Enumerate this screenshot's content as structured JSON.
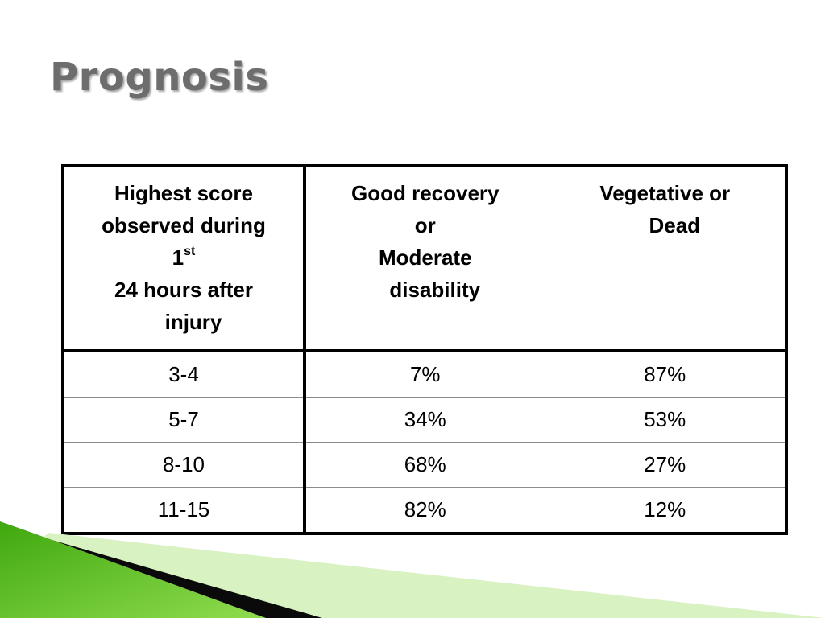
{
  "slide": {
    "title": "Prognosis"
  },
  "table": {
    "headers": {
      "col1": {
        "line1": "Highest score",
        "line2": "observed during",
        "line3": "1",
        "line3_sup": "st",
        "line4": "24 hours after",
        "line5": "injury"
      },
      "col2": {
        "line1": "Good recovery",
        "line2": "or",
        "line3": "Moderate",
        "line4": "disability"
      },
      "col3": {
        "line1": "Vegetative or",
        "line2": "Dead"
      }
    },
    "rows": [
      {
        "score": "3-4",
        "good": "7%",
        "vegetative": "87%"
      },
      {
        "score": "5-7",
        "good": "34%",
        "vegetative": "53%"
      },
      {
        "score": "8-10",
        "good": "68%",
        "vegetative": "27%"
      },
      {
        "score": "11-15",
        "good": "82%",
        "vegetative": "12%"
      }
    ]
  },
  "theme": {
    "title_color": "#6d6d6d",
    "accent_green": "#5cc21e",
    "accent_light_green": "#b6e58a"
  }
}
